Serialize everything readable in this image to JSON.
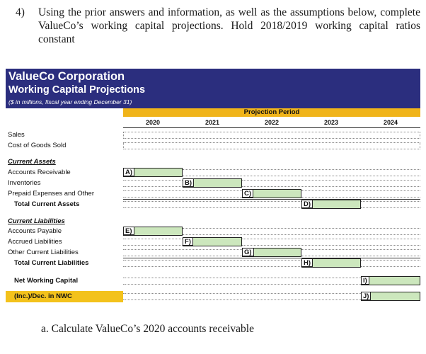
{
  "question": {
    "number": "4)",
    "text": "Using the prior answers and information, as well as the assumptions below, complete ValueCo’s working capital projections. Hold 2018/2019 working capital ratios constant"
  },
  "table": {
    "company": "ValueCo Corporation",
    "title": "Working Capital Projections",
    "units": "($ in millions, fiscal year ending December 31)",
    "projection_label": "Projection Period",
    "years": [
      "2020",
      "2021",
      "2022",
      "2023",
      "2024"
    ],
    "rows": {
      "sales": "Sales",
      "cogs": "Cost of Goods Sold",
      "current_assets": "Current Assets",
      "accounts_receivable": "Accounts Receivable",
      "inventories": "Inventories",
      "prepaid": "Prepaid Expenses and Other",
      "total_current_assets": "Total Current Assets",
      "current_liabilities": "Current Liabilities",
      "accounts_payable": "Accounts Payable",
      "accrued": "Accrued Liabilities",
      "other_liabilities": "Other Current Liabilities",
      "total_current_liabilities": "Total Current Liabilities",
      "nwc": "Net Working Capital",
      "change_nwc": "(Inc.)/Dec. in NWC"
    },
    "tags": {
      "a": "A)",
      "b": "B)",
      "c": "C)",
      "d": "D)",
      "e": "E)",
      "f": "F)",
      "g": "G)",
      "h": "H)",
      "i": "I)",
      "j": "J)"
    },
    "colors": {
      "banner": "#2b2e7e",
      "projection_bar": "#f0b41a",
      "answer_cell": "#cce7bd",
      "nwc_highlight": "#f3c21c"
    }
  },
  "subquestion": "a.  Calculate ValueCo’s 2020 accounts receivable"
}
